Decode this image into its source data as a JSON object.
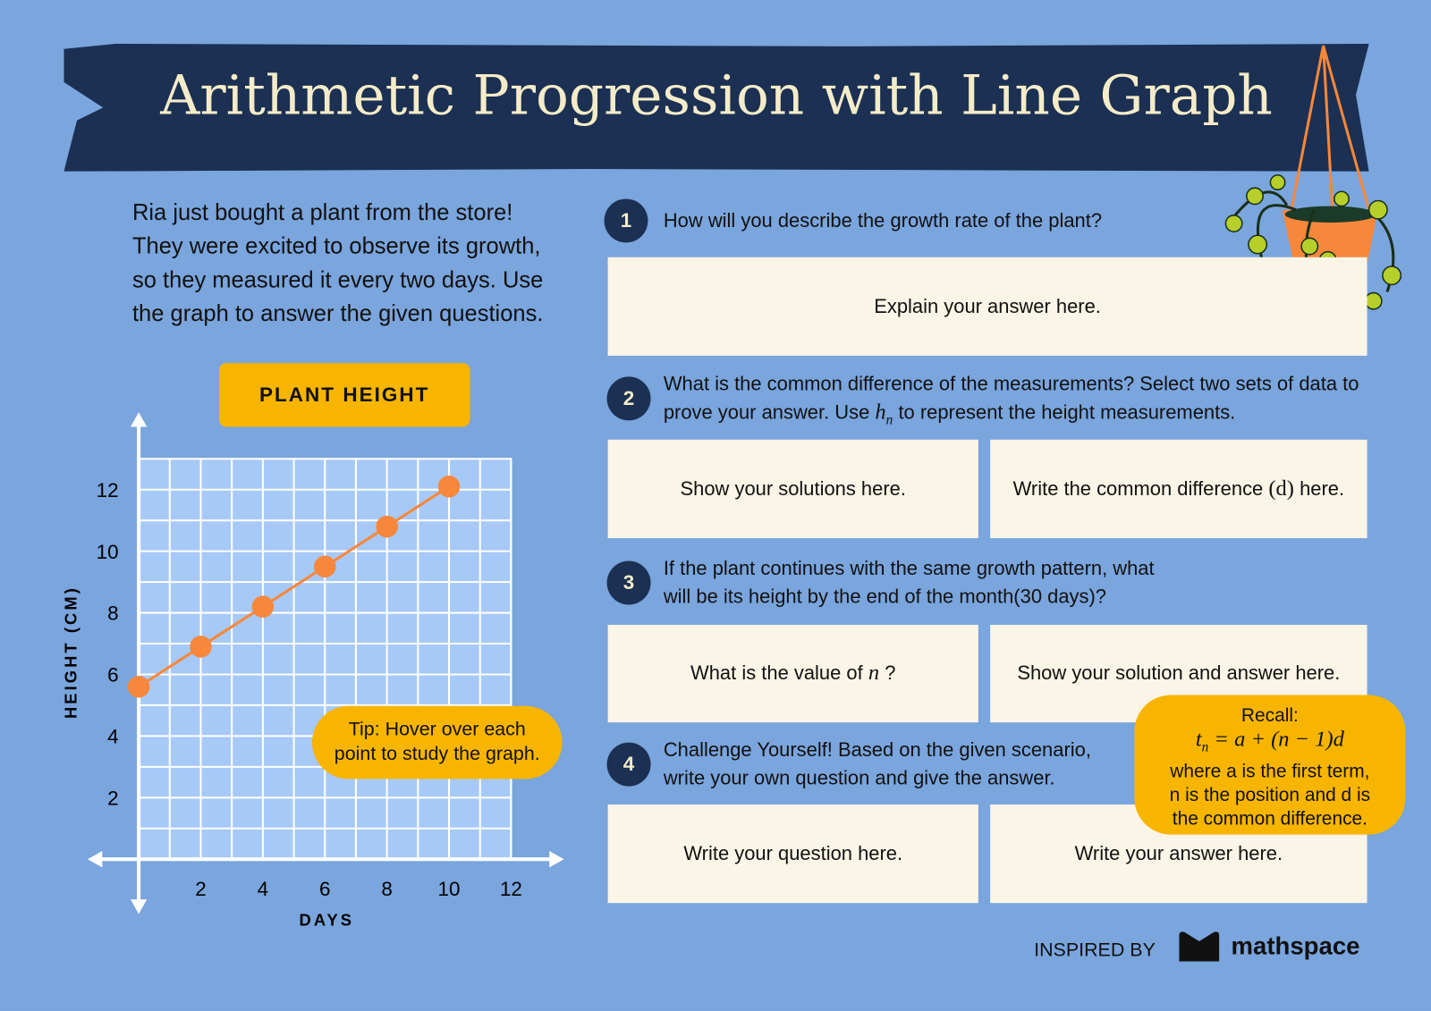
{
  "header": {
    "title": "Arithmetic Progression with Line Graph"
  },
  "intro": [
    "Ria just bought a plant from the store!",
    "They were excited to observe its growth,",
    "so they measured it every two days. Use",
    "the graph to answer the given questions."
  ],
  "chart_data": {
    "type": "line",
    "title": "PLANT HEIGHT",
    "x_label": "DAYS",
    "y_label": "HEIGHT (CM)",
    "x": [
      0,
      2,
      4,
      6,
      8,
      10
    ],
    "values": [
      5.6,
      6.9,
      8.2,
      9.5,
      10.8,
      12.1
    ],
    "color": "#f7873a",
    "xlim": [
      0,
      12
    ],
    "ylim": [
      0,
      13
    ],
    "xticks": [
      2,
      4,
      6,
      8,
      10,
      12
    ],
    "yticks": [
      2,
      4,
      6,
      8,
      10,
      12
    ],
    "grid": true,
    "annotation": "Tip: Hover over each point to study the graph."
  },
  "questions": [
    {
      "number": "1",
      "text_parts": [
        "How will you describe the growth rate of the plant?"
      ],
      "answers": [
        [
          "Explain your answer here."
        ]
      ]
    },
    {
      "number": "2",
      "text_parts": [
        "What is the common difference of the measurements? Select two sets of data to",
        "prove your answer. Use",
        "h",
        "n",
        "to represent the height measurements."
      ],
      "answers": [
        [
          "Show your solutions here."
        ],
        [
          "Write the common difference",
          "(d)",
          "here."
        ]
      ]
    },
    {
      "number": "3",
      "text_parts": [
        "If the plant continues with the same growth pattern, what",
        "will be its height by the end of the month(30 days)?"
      ],
      "answers": [
        [
          "What is the value of",
          "n",
          "?"
        ],
        [
          "Show your solution and answer here."
        ]
      ]
    },
    {
      "number": "4",
      "text_parts": [
        "Challenge Yourself! Based on the given scenario,",
        "write your own question and give the answer."
      ],
      "answers": [
        [
          "Write your question here."
        ],
        [
          "Write your answer here."
        ]
      ]
    }
  ],
  "recall": {
    "heading": "Recall:",
    "formula": [
      "t",
      "n",
      "= a + (n − 1)d"
    ],
    "lines": [
      "where a is the first term,",
      "n is the position and d is",
      "the common difference."
    ]
  },
  "footer": {
    "inspired": "INSPIRED BY",
    "brand": "mathspace"
  }
}
